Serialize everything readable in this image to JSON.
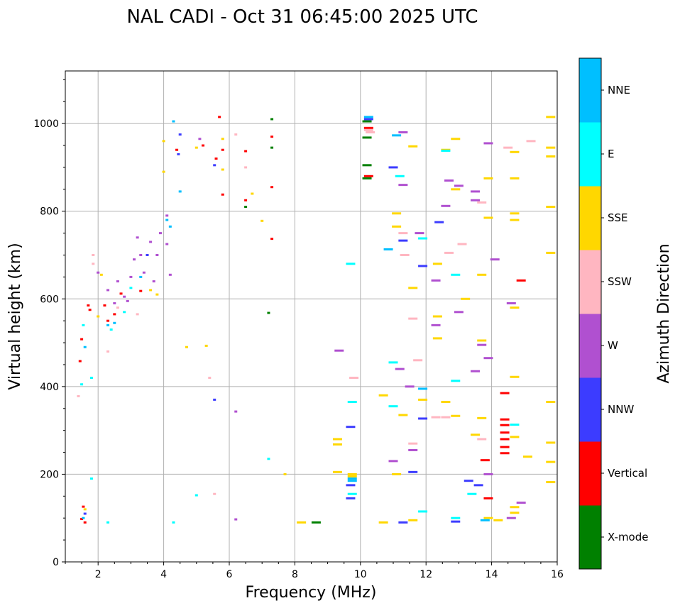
{
  "chart_data": {
    "type": "scatter",
    "title": "NAL CADI - Oct 31 06:45:00 2025 UTC",
    "xlabel": "Frequency (MHz)",
    "ylabel": "Virtual height (km)",
    "xlim": [
      1.0,
      16.0
    ],
    "ylim": [
      0,
      1120
    ],
    "xticks": [
      2,
      4,
      6,
      8,
      10,
      12,
      14,
      16
    ],
    "yticks": [
      0,
      200,
      400,
      600,
      800,
      1000
    ],
    "grid": true,
    "colorbar": {
      "label": "Azimuth Direction",
      "categories": [
        {
          "name": "X-mode",
          "color": "#008000"
        },
        {
          "name": "Vertical",
          "color": "#ff0000"
        },
        {
          "name": "NNW",
          "color": "#3c3cff"
        },
        {
          "name": "W",
          "color": "#b050d0"
        },
        {
          "name": "SSW",
          "color": "#ffb6c1"
        },
        {
          "name": "SSE",
          "color": "#ffd700"
        },
        {
          "name": "E",
          "color": "#00ffff"
        },
        {
          "name": "NNE",
          "color": "#00bfff"
        }
      ]
    },
    "series": [
      {
        "name": "X-mode",
        "points": [
          [
            8.65,
            90
          ],
          [
            10.2,
            1005
          ],
          [
            10.2,
            968
          ],
          [
            10.2,
            905
          ],
          [
            10.2,
            875
          ],
          [
            7.2,
            568
          ],
          [
            7.3,
            1010
          ],
          [
            7.3,
            945
          ],
          [
            6.5,
            810
          ]
        ]
      },
      {
        "name": "Vertical",
        "points": [
          [
            1.5,
            98
          ],
          [
            1.55,
            126
          ],
          [
            1.6,
            90
          ],
          [
            1.45,
            458
          ],
          [
            1.5,
            508
          ],
          [
            1.7,
            585
          ],
          [
            1.75,
            575
          ],
          [
            2.3,
            550
          ],
          [
            2.5,
            565
          ],
          [
            2.7,
            612
          ],
          [
            3.3,
            618
          ],
          [
            5.6,
            920
          ],
          [
            5.8,
            940
          ],
          [
            5.8,
            838
          ],
          [
            5.7,
            1015
          ],
          [
            6.5,
            937
          ],
          [
            6.5,
            825
          ],
          [
            7.3,
            970
          ],
          [
            7.3,
            855
          ],
          [
            7.3,
            737
          ],
          [
            10.25,
            990
          ],
          [
            10.25,
            880
          ],
          [
            14.4,
            385
          ],
          [
            14.4,
            325
          ],
          [
            14.4,
            312
          ],
          [
            14.4,
            295
          ],
          [
            14.4,
            280
          ],
          [
            14.4,
            262
          ],
          [
            14.4,
            248
          ],
          [
            13.8,
            232
          ],
          [
            13.9,
            145
          ],
          [
            14.9,
            642
          ],
          [
            5.2,
            950
          ],
          [
            4.4,
            940
          ],
          [
            2.2,
            585
          ]
        ]
      },
      {
        "name": "NNW",
        "points": [
          [
            1.6,
            110
          ],
          [
            4.45,
            930
          ],
          [
            4.5,
            975
          ],
          [
            5.55,
            905
          ],
          [
            5.55,
            370
          ],
          [
            9.7,
            308
          ],
          [
            9.7,
            175
          ],
          [
            9.7,
            145
          ],
          [
            10.25,
            1010
          ],
          [
            11.0,
            900
          ],
          [
            11.3,
            733
          ],
          [
            11.9,
            675
          ],
          [
            11.9,
            327
          ],
          [
            11.6,
            205
          ],
          [
            12.4,
            775
          ],
          [
            12.9,
            92
          ],
          [
            13.3,
            185
          ],
          [
            13.6,
            175
          ],
          [
            11.3,
            90
          ],
          [
            3.5,
            700
          ]
        ]
      },
      {
        "name": "W",
        "points": [
          [
            2.0,
            660
          ],
          [
            2.3,
            620
          ],
          [
            2.6,
            640
          ],
          [
            2.8,
            605
          ],
          [
            3.0,
            650
          ],
          [
            3.1,
            690
          ],
          [
            3.3,
            700
          ],
          [
            3.4,
            660
          ],
          [
            3.6,
            730
          ],
          [
            3.8,
            700
          ],
          [
            3.9,
            750
          ],
          [
            4.1,
            790
          ],
          [
            4.1,
            725
          ],
          [
            3.2,
            740
          ],
          [
            2.9,
            595
          ],
          [
            2.5,
            590
          ],
          [
            3.7,
            640
          ],
          [
            4.2,
            655
          ],
          [
            6.2,
            343
          ],
          [
            6.2,
            97
          ],
          [
            5.1,
            965
          ],
          [
            9.35,
            482
          ],
          [
            11.3,
            980
          ],
          [
            11.3,
            860
          ],
          [
            11.5,
            400
          ],
          [
            11.6,
            255
          ],
          [
            11.0,
            230
          ],
          [
            11.2,
            440
          ],
          [
            11.8,
            750
          ],
          [
            12.7,
            870
          ],
          [
            13.0,
            858
          ],
          [
            13.0,
            570
          ],
          [
            13.5,
            845
          ],
          [
            13.5,
            825
          ],
          [
            13.5,
            435
          ],
          [
            13.7,
            495
          ],
          [
            13.9,
            955
          ],
          [
            13.9,
            465
          ],
          [
            13.9,
            200
          ],
          [
            14.1,
            690
          ],
          [
            14.6,
            590
          ],
          [
            14.6,
            100
          ],
          [
            14.9,
            135
          ],
          [
            12.3,
            540
          ],
          [
            12.3,
            642
          ],
          [
            12.6,
            812
          ]
        ]
      },
      {
        "name": "SSW",
        "points": [
          [
            1.4,
            378
          ],
          [
            1.85,
            700
          ],
          [
            1.85,
            680
          ],
          [
            2.3,
            480
          ],
          [
            2.6,
            580
          ],
          [
            3.2,
            565
          ],
          [
            5.4,
            420
          ],
          [
            5.55,
            155
          ],
          [
            6.2,
            975
          ],
          [
            6.5,
            900
          ],
          [
            10.25,
            985
          ],
          [
            9.8,
            420
          ],
          [
            11.3,
            750
          ],
          [
            11.35,
            700
          ],
          [
            11.6,
            555
          ],
          [
            11.6,
            270
          ],
          [
            11.75,
            460
          ],
          [
            12.6,
            330
          ],
          [
            12.7,
            705
          ],
          [
            13.1,
            725
          ],
          [
            13.7,
            820
          ],
          [
            13.7,
            280
          ],
          [
            14.5,
            945
          ],
          [
            15.2,
            960
          ],
          [
            12.3,
            330
          ],
          [
            10.3,
            980
          ]
        ]
      },
      {
        "name": "SSE",
        "points": [
          [
            1.6,
            120
          ],
          [
            2.1,
            655
          ],
          [
            2.0,
            560
          ],
          [
            3.6,
            620
          ],
          [
            3.8,
            610
          ],
          [
            4.0,
            960
          ],
          [
            4.0,
            890
          ],
          [
            4.7,
            490
          ],
          [
            5.0,
            945
          ],
          [
            5.3,
            493
          ],
          [
            5.8,
            965
          ],
          [
            5.8,
            895
          ],
          [
            6.7,
            840
          ],
          [
            7.0,
            778
          ],
          [
            7.7,
            200
          ],
          [
            9.3,
            280
          ],
          [
            9.3,
            268
          ],
          [
            9.3,
            205
          ],
          [
            9.75,
            200
          ],
          [
            9.75,
            195
          ],
          [
            10.7,
            380
          ],
          [
            10.7,
            90
          ],
          [
            11.1,
            795
          ],
          [
            11.1,
            765
          ],
          [
            11.1,
            200
          ],
          [
            11.3,
            335
          ],
          [
            11.6,
            948
          ],
          [
            11.6,
            625
          ],
          [
            11.6,
            95
          ],
          [
            11.9,
            370
          ],
          [
            12.35,
            680
          ],
          [
            12.35,
            560
          ],
          [
            12.35,
            510
          ],
          [
            12.6,
            940
          ],
          [
            12.6,
            365
          ],
          [
            12.9,
            965
          ],
          [
            12.9,
            850
          ],
          [
            12.9,
            333
          ],
          [
            13.2,
            600
          ],
          [
            13.5,
            290
          ],
          [
            13.7,
            655
          ],
          [
            13.7,
            505
          ],
          [
            13.7,
            328
          ],
          [
            13.9,
            875
          ],
          [
            13.9,
            785
          ],
          [
            13.9,
            100
          ],
          [
            14.2,
            95
          ],
          [
            14.7,
            935
          ],
          [
            14.7,
            875
          ],
          [
            14.7,
            795
          ],
          [
            14.7,
            780
          ],
          [
            14.7,
            580
          ],
          [
            14.7,
            422
          ],
          [
            14.7,
            285
          ],
          [
            14.7,
            125
          ],
          [
            14.7,
            112
          ],
          [
            15.1,
            240
          ],
          [
            15.8,
            1015
          ],
          [
            15.8,
            945
          ],
          [
            15.8,
            925
          ],
          [
            15.8,
            810
          ],
          [
            15.8,
            705
          ],
          [
            15.8,
            365
          ],
          [
            15.8,
            272
          ],
          [
            15.8,
            228
          ],
          [
            15.8,
            182
          ],
          [
            8.2,
            90
          ]
        ]
      },
      {
        "name": "E",
        "points": [
          [
            1.5,
            405
          ],
          [
            1.55,
            540
          ],
          [
            1.8,
            420
          ],
          [
            1.8,
            190
          ],
          [
            2.3,
            90
          ],
          [
            2.4,
            530
          ],
          [
            2.8,
            570
          ],
          [
            3.0,
            625
          ],
          [
            4.3,
            90
          ],
          [
            5.0,
            152
          ],
          [
            7.2,
            235
          ],
          [
            9.7,
            680
          ],
          [
            9.75,
            365
          ],
          [
            9.75,
            155
          ],
          [
            11.0,
            455
          ],
          [
            11.0,
            355
          ],
          [
            11.2,
            880
          ],
          [
            11.9,
            738
          ],
          [
            11.9,
            115
          ],
          [
            12.6,
            938
          ],
          [
            12.9,
            655
          ],
          [
            12.9,
            413
          ],
          [
            12.9,
            100
          ],
          [
            13.4,
            155
          ],
          [
            14.7,
            313
          ]
        ]
      },
      {
        "name": "NNE",
        "points": [
          [
            1.55,
            100
          ],
          [
            1.6,
            490
          ],
          [
            2.3,
            540
          ],
          [
            2.5,
            545
          ],
          [
            3.3,
            650
          ],
          [
            4.1,
            780
          ],
          [
            4.2,
            765
          ],
          [
            4.3,
            1005
          ],
          [
            4.5,
            845
          ],
          [
            9.75,
            185
          ],
          [
            9.75,
            190
          ],
          [
            10.25,
            1015
          ],
          [
            10.85,
            713
          ],
          [
            11.1,
            973
          ],
          [
            11.9,
            395
          ],
          [
            13.8,
            95
          ]
        ]
      }
    ]
  }
}
